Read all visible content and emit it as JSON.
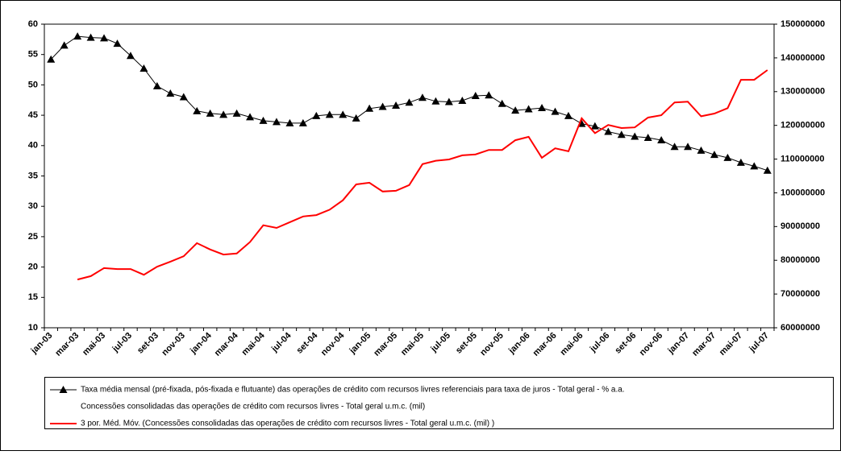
{
  "chart_data": {
    "type": "line",
    "categories": [
      "jan-03",
      null,
      "mar-03",
      null,
      "mai-03",
      null,
      "jul-03",
      null,
      "set-03",
      null,
      "nov-03",
      null,
      "jan-04",
      null,
      "mar-04",
      null,
      "mai-04",
      null,
      "jul-04",
      null,
      "set-04",
      null,
      "nov-04",
      null,
      "jan-05",
      null,
      "mar-05",
      null,
      "mai-05",
      null,
      "jul-05",
      null,
      "set-05",
      null,
      "nov-05",
      null,
      "jan-06",
      null,
      "mar-06",
      null,
      "mai-06",
      null,
      "jul-06",
      null,
      "set-06",
      null,
      "nov-06",
      null,
      "jan-07",
      null,
      "mar-07",
      null,
      "mai-07",
      null,
      "jul-07"
    ],
    "series": [
      {
        "name": "Taxa média mensal (pré-fixada, pós-fixada e flutuante) das operações de crédito com recursos livres referenciais para taxa de juros - Total geral - % a.a.",
        "color": "#000000",
        "marker": "triangle",
        "values": [
          54.2,
          56.5,
          58.0,
          57.8,
          57.7,
          56.8,
          54.8,
          52.7,
          49.8,
          48.6,
          48.0,
          45.7,
          45.3,
          45.1,
          45.3,
          44.7,
          44.1,
          43.9,
          43.7,
          43.7,
          44.9,
          45.1,
          45.1,
          44.5,
          46.1,
          46.4,
          46.6,
          47.1,
          47.9,
          47.3,
          47.2,
          47.4,
          48.2,
          48.3,
          46.9,
          45.8,
          46.0,
          46.2,
          45.6,
          44.9,
          43.6,
          43.2,
          42.3,
          41.8,
          41.5,
          41.3,
          40.9,
          39.8,
          39.8,
          39.2,
          38.5,
          38.0,
          37.2,
          36.6,
          35.9
        ]
      },
      {
        "name": "Concessões consolidadas das operações de crédito com recursos livres - Total geral u.m.c. (mil)",
        "color": "none",
        "axis": "y2",
        "values": [
          null,
          null,
          null,
          null,
          null,
          null,
          null,
          null,
          null,
          null,
          null,
          null,
          null,
          null,
          null,
          null,
          null,
          null,
          null,
          null,
          null,
          null,
          null,
          null,
          null,
          null,
          null,
          null,
          null,
          null,
          null,
          null,
          null,
          null,
          null,
          null,
          null,
          null,
          null,
          null,
          null,
          null,
          null,
          null,
          null,
          null,
          null,
          null,
          null,
          null,
          null,
          null,
          null,
          null,
          null
        ]
      },
      {
        "name": "3 por. Méd. Móv. (Concessões consolidadas das operações de crédito com recursos livres - Total geral u.m.c. (mil) )",
        "color": "#ff0000",
        "axis": "y2",
        "values": [
          null,
          null,
          74300000,
          75300000,
          77700000,
          77400000,
          77400000,
          75700000,
          78100000,
          79600000,
          81200000,
          85100000,
          83200000,
          81700000,
          82000000,
          85400000,
          90400000,
          89600000,
          91300000,
          93000000,
          93400000,
          95000000,
          97800000,
          102500000,
          103000000,
          100400000,
          100600000,
          102300000,
          108500000,
          109500000,
          109900000,
          111100000,
          111400000,
          112700000,
          112700000,
          115600000,
          116600000,
          110400000,
          113200000,
          112300000,
          122100000,
          117700000,
          120100000,
          119200000,
          119400000,
          122300000,
          123000000,
          126800000,
          127000000,
          122700000,
          123500000,
          125100000,
          133500000,
          133500000,
          136400000
        ]
      }
    ],
    "ylim": [
      10,
      60
    ],
    "yticks": [
      10,
      15,
      20,
      25,
      30,
      35,
      40,
      45,
      50,
      55,
      60
    ],
    "y2lim": [
      60000000,
      150000000
    ],
    "y2ticks": [
      60000000,
      70000000,
      80000000,
      90000000,
      100000000,
      110000000,
      120000000,
      130000000,
      140000000,
      150000000
    ],
    "grid": false,
    "legend": "bottom"
  }
}
